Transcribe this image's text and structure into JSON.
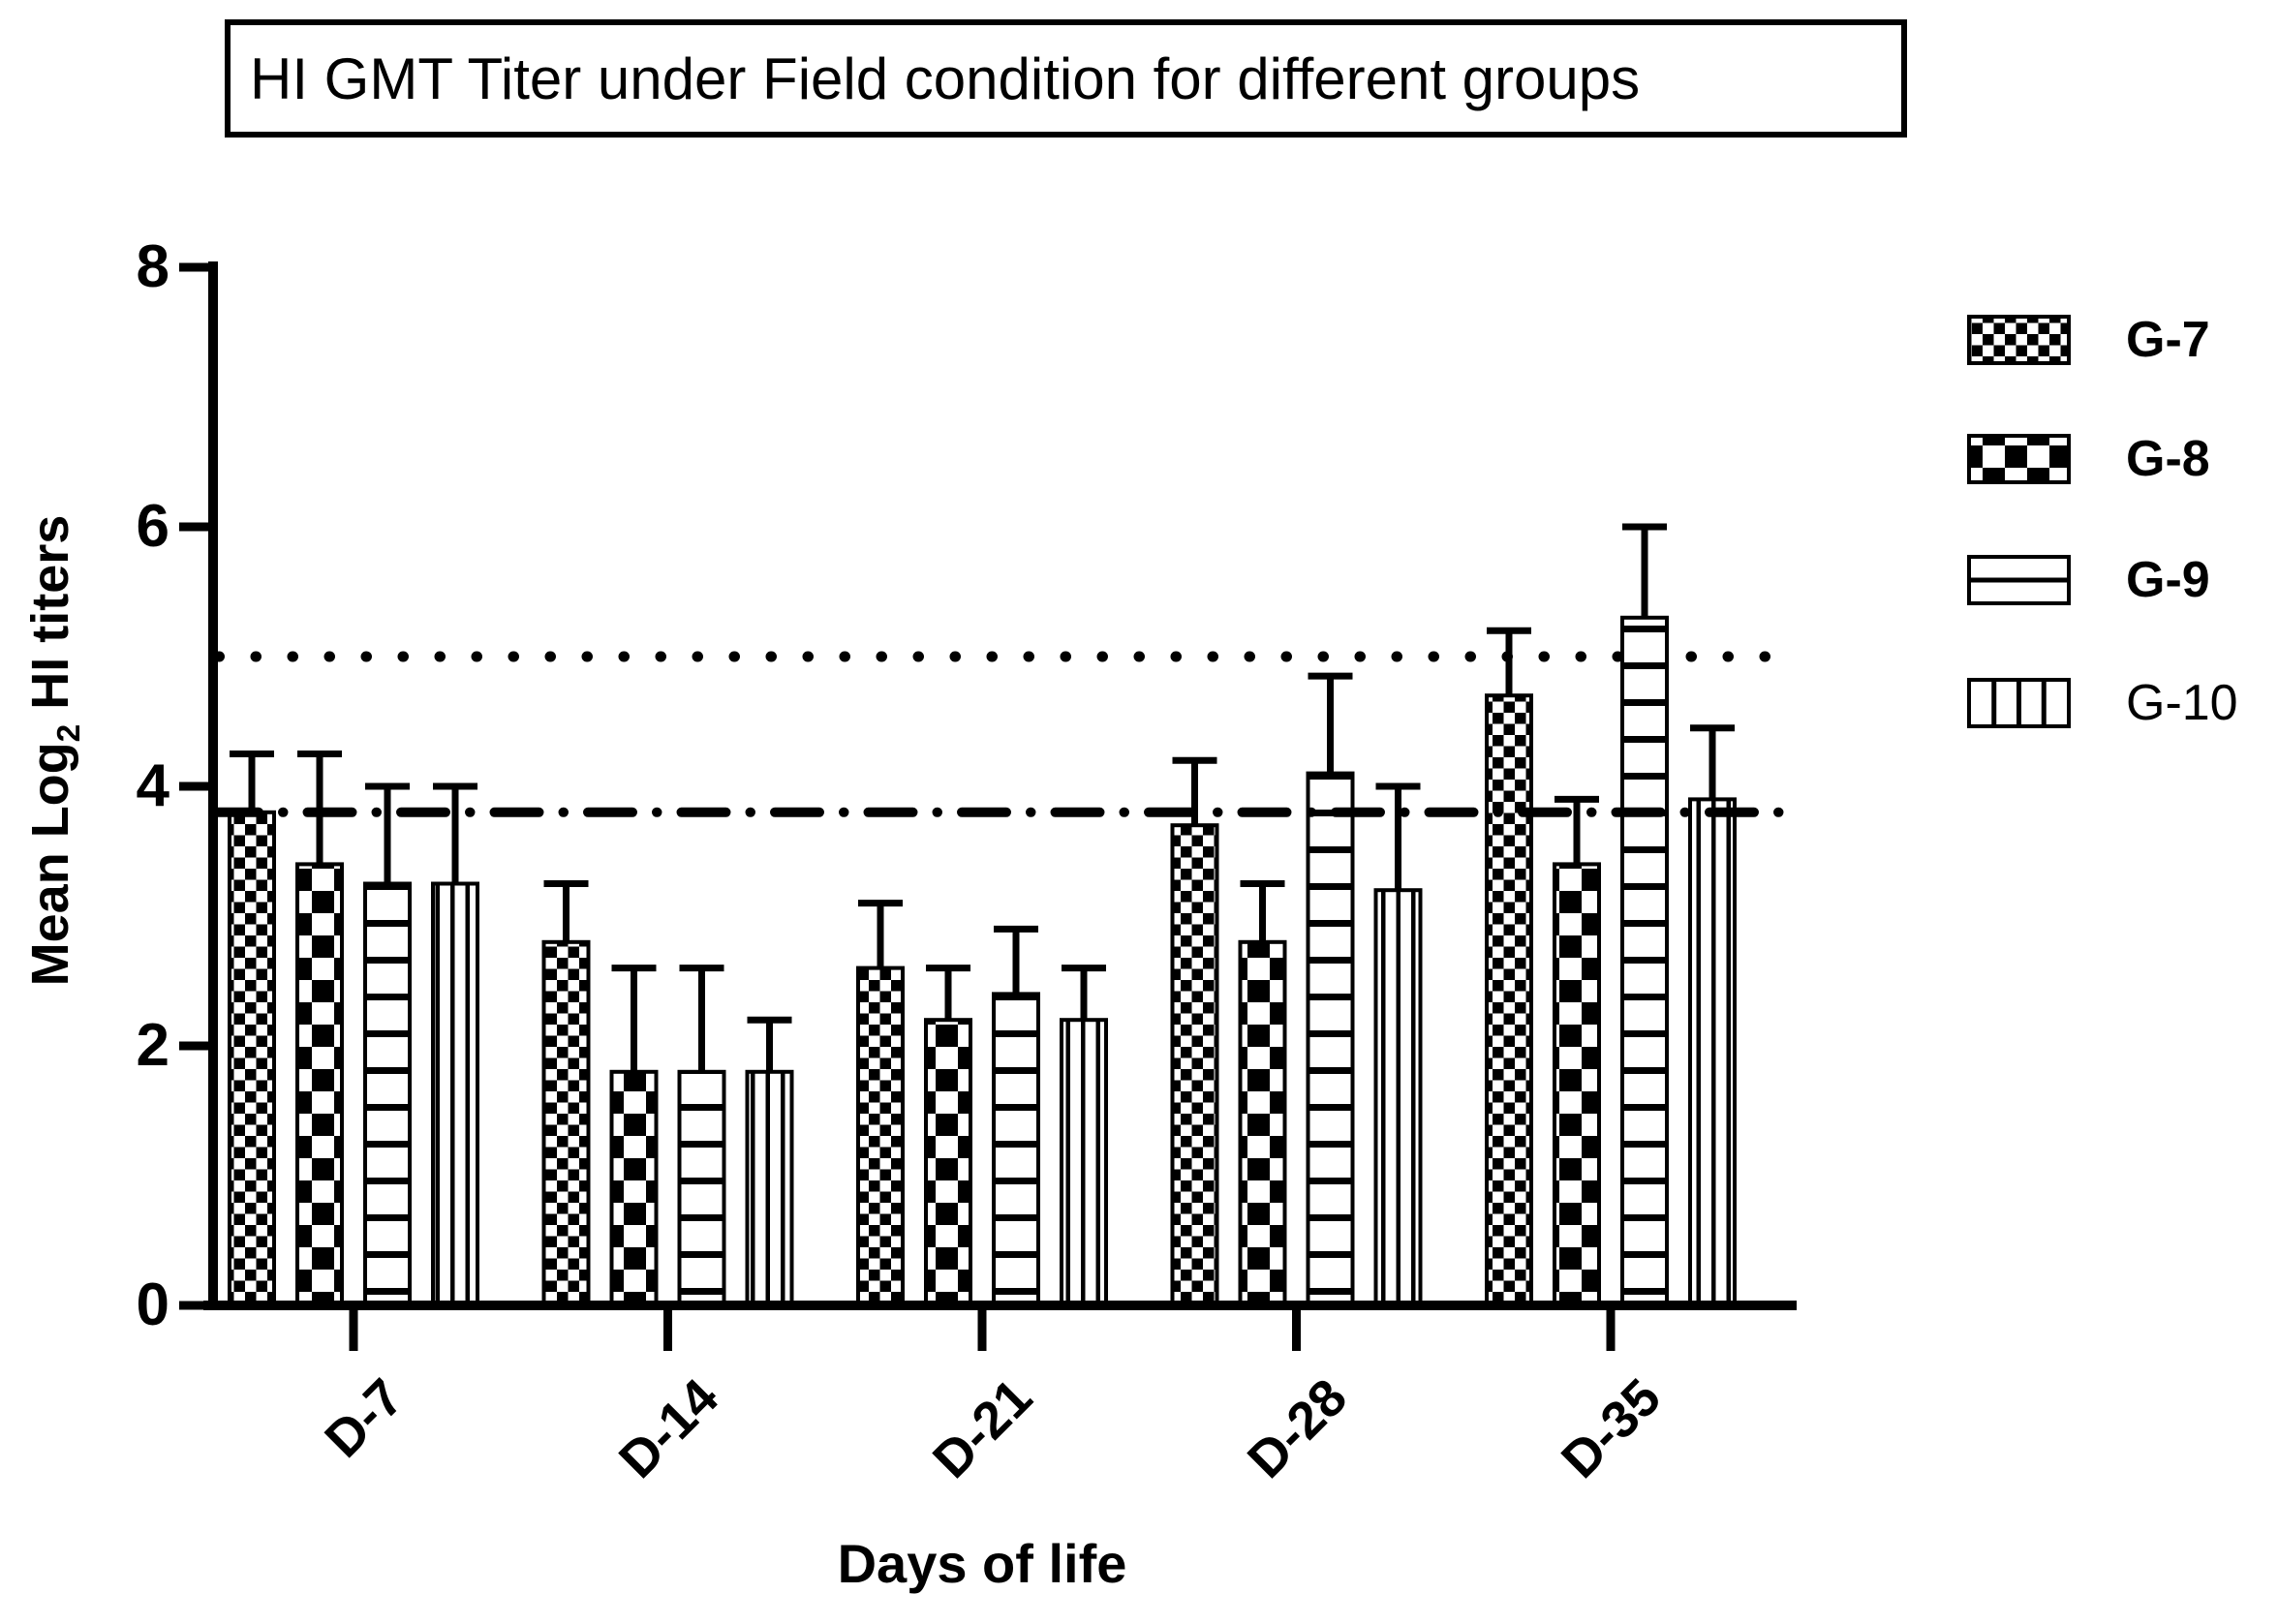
{
  "figure": {
    "background": "#ffffff",
    "foreground": "#000000"
  },
  "chart_data": {
    "type": "bar",
    "title": "HI GMT Titer under Field condition for different groups",
    "xlabel": "Days of life",
    "ylabel": "Mean Log2 HI titers",
    "ylabel_parts": {
      "prefix": "Mean Log",
      "subscript": "2",
      "suffix": " HI titers"
    },
    "categories": [
      "D-7",
      "D-14",
      "D-21",
      "D-28",
      "D-35"
    ],
    "yticks": [
      0,
      2,
      4,
      6,
      8
    ],
    "ylim": [
      0,
      8
    ],
    "grid": false,
    "legend_position": "right",
    "error_bars": "upper",
    "series": [
      {
        "name": "G-7",
        "pattern": "checkerboard-fine",
        "values": [
          3.8,
          2.8,
          2.6,
          3.7,
          4.7
        ],
        "errors": [
          0.45,
          0.45,
          0.5,
          0.5,
          0.5
        ]
      },
      {
        "name": "G-8",
        "pattern": "checkerboard-coarse",
        "values": [
          3.4,
          1.8,
          2.2,
          2.8,
          3.4
        ],
        "errors": [
          0.85,
          0.8,
          0.4,
          0.45,
          0.5
        ]
      },
      {
        "name": "G-9",
        "pattern": "horizontal-stripes",
        "values": [
          3.25,
          1.8,
          2.4,
          4.1,
          5.3
        ],
        "errors": [
          0.75,
          0.8,
          0.5,
          0.75,
          0.7
        ]
      },
      {
        "name": "G-10",
        "pattern": "vertical-stripes",
        "values": [
          3.25,
          1.8,
          2.2,
          3.2,
          3.9
        ],
        "errors": [
          0.75,
          0.4,
          0.4,
          0.8,
          0.55
        ]
      }
    ],
    "reference_lines": [
      {
        "y": 5.0,
        "style": "dotted"
      },
      {
        "y": 3.8,
        "style": "dash-dot"
      }
    ]
  }
}
